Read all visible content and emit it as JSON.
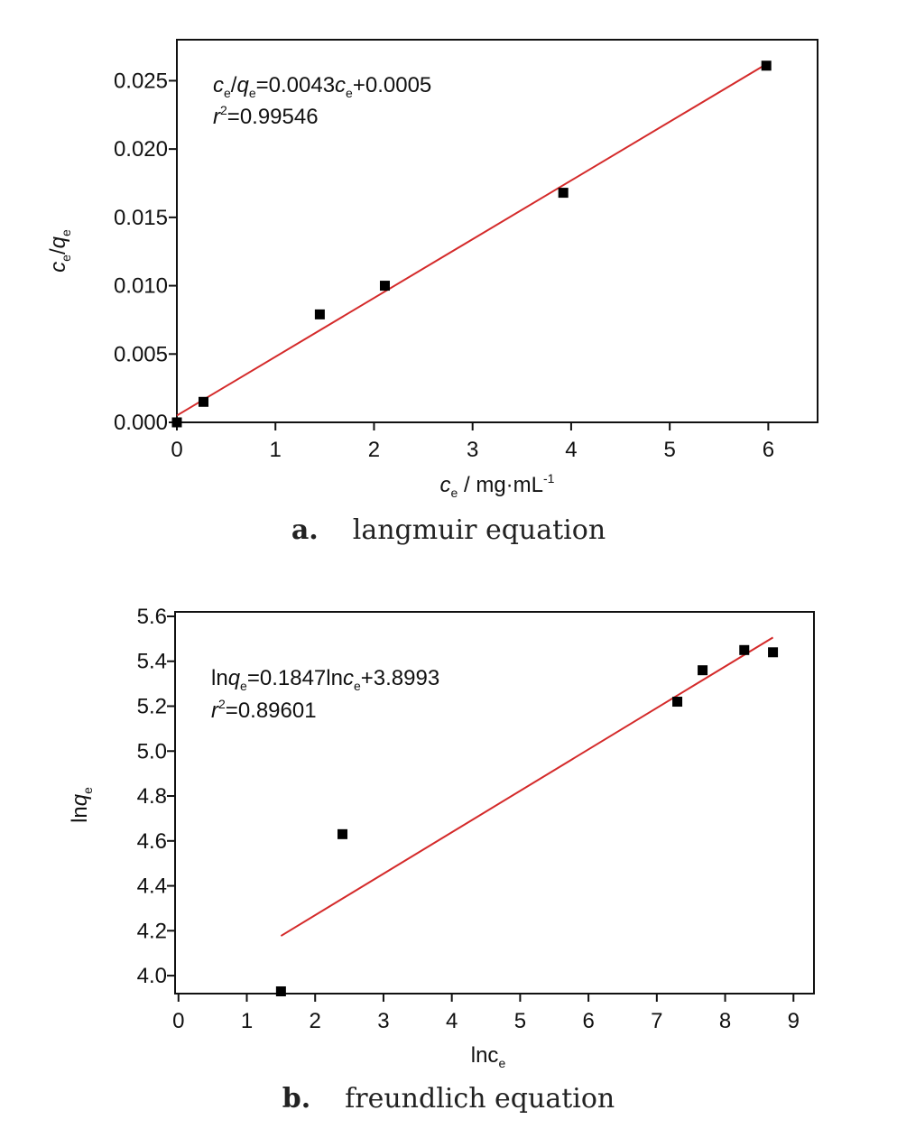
{
  "charts": [
    {
      "caption_label": "a.",
      "caption_text": "langmuir equation",
      "annotation_line1_parts": [
        {
          "t": "c",
          "style": "i"
        },
        {
          "t": "e",
          "style": "sub"
        },
        {
          "t": "/",
          "style": "n"
        },
        {
          "t": "q",
          "style": "i"
        },
        {
          "t": "e",
          "style": "sub"
        },
        {
          "t": "=0.0043",
          "style": "n"
        },
        {
          "t": "c",
          "style": "i"
        },
        {
          "t": "e",
          "style": "sub"
        },
        {
          "t": "+0.0005",
          "style": "n"
        }
      ],
      "annotation_line2_parts": [
        {
          "t": "r",
          "style": "i"
        },
        {
          "t": "2",
          "style": "sup"
        },
        {
          "t": "=0.99546",
          "style": "n"
        }
      ],
      "xlabel_parts": [
        {
          "t": "c",
          "style": "i"
        },
        {
          "t": "e",
          "style": "sub"
        },
        {
          "t": " / mg·mL",
          "style": "n"
        },
        {
          "t": "-1",
          "style": "sup"
        }
      ],
      "ylabel_parts": [
        {
          "t": "c",
          "style": "i"
        },
        {
          "t": "e",
          "style": "sub"
        },
        {
          "t": "/",
          "style": "n"
        },
        {
          "t": "q",
          "style": "i"
        },
        {
          "t": "e",
          "style": "sub"
        }
      ]
    },
    {
      "caption_label": "b.",
      "caption_text": "freundlich equation",
      "annotation_line1_parts": [
        {
          "t": "ln",
          "style": "n"
        },
        {
          "t": "q",
          "style": "i"
        },
        {
          "t": "e",
          "style": "sub"
        },
        {
          "t": "=0.1847ln",
          "style": "n"
        },
        {
          "t": "c",
          "style": "i"
        },
        {
          "t": "e",
          "style": "sub"
        },
        {
          "t": "+3.8993",
          "style": "n"
        }
      ],
      "annotation_line2_parts": [
        {
          "t": "r",
          "style": "i"
        },
        {
          "t": "2",
          "style": "sup"
        },
        {
          "t": "=0.89601",
          "style": "n"
        }
      ],
      "xlabel_parts": [
        {
          "t": "lnc",
          "style": "n"
        },
        {
          "t": "e",
          "style": "sub"
        }
      ],
      "ylabel_parts": [
        {
          "t": "ln",
          "style": "n"
        },
        {
          "t": "q",
          "style": "i"
        },
        {
          "t": "e",
          "style": "sub"
        }
      ]
    }
  ],
  "chart_data": [
    {
      "type": "scatter",
      "title": "",
      "xlabel": "ce / mg·mL-1",
      "ylabel": "ce/qe",
      "xlim": [
        0,
        6.5
      ],
      "ylim": [
        0,
        0.028
      ],
      "xticks": [
        0,
        1,
        2,
        3,
        4,
        5,
        6
      ],
      "xtick_labels": [
        "0",
        "1",
        "2",
        "3",
        "4",
        "5",
        "6"
      ],
      "yticks": [
        0,
        0.005,
        0.01,
        0.015,
        0.02,
        0.025
      ],
      "ytick_labels": [
        "0.000",
        "0.005",
        "0.010",
        "0.015",
        "0.020",
        "0.025"
      ],
      "points": [
        {
          "x": 0.0,
          "y": 0.0
        },
        {
          "x": 0.27,
          "y": 0.0015
        },
        {
          "x": 1.45,
          "y": 0.0079
        },
        {
          "x": 2.11,
          "y": 0.01
        },
        {
          "x": 3.92,
          "y": 0.0168
        },
        {
          "x": 5.98,
          "y": 0.0261
        }
      ],
      "fit_line": {
        "x": [
          0.0,
          6.0
        ],
        "y": [
          0.0005,
          0.0263
        ],
        "color": "#d42a2a"
      },
      "marker_color": "#000000",
      "grid": false,
      "legend": "none"
    },
    {
      "type": "scatter",
      "title": "",
      "xlabel": "lnce",
      "ylabel": "lnqe",
      "xlim": [
        -0.05,
        9.3
      ],
      "ylim": [
        3.92,
        5.62
      ],
      "xticks": [
        0,
        1,
        2,
        3,
        4,
        5,
        6,
        7,
        8,
        9
      ],
      "xtick_labels": [
        "0",
        "1",
        "2",
        "3",
        "4",
        "5",
        "6",
        "7",
        "8",
        "9"
      ],
      "yticks": [
        4.0,
        4.2,
        4.4,
        4.6,
        4.8,
        5.0,
        5.2,
        5.4,
        5.6
      ],
      "ytick_labels": [
        "4.0",
        "4.2",
        "4.4",
        "4.6",
        "4.8",
        "5.0",
        "5.2",
        "5.4",
        "5.6"
      ],
      "points": [
        {
          "x": 1.5,
          "y": 3.93
        },
        {
          "x": 2.4,
          "y": 4.63
        },
        {
          "x": 7.3,
          "y": 5.22
        },
        {
          "x": 7.67,
          "y": 5.36
        },
        {
          "x": 8.28,
          "y": 5.45
        },
        {
          "x": 8.7,
          "y": 5.44
        }
      ],
      "fit_line": {
        "x": [
          1.5,
          8.7
        ],
        "y": [
          4.177,
          5.506
        ],
        "color": "#d42a2a"
      },
      "marker_color": "#000000",
      "grid": false,
      "legend": "none"
    }
  ]
}
